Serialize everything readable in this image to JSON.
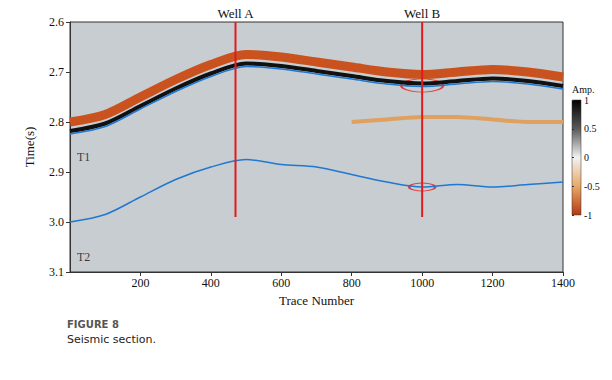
{
  "chart_data": {
    "type": "line",
    "caption": [
      "FIGURE 8",
      "Seismic section."
    ],
    "x_label": "Trace Number",
    "y_label": "Time(s)",
    "xlim": [
      0,
      1400
    ],
    "xticks": [
      200,
      400,
      600,
      800,
      1000,
      1200,
      1400
    ],
    "ylim": [
      2.6,
      3.1
    ],
    "yticks": [
      2.6,
      2.7,
      2.8,
      2.9,
      {
        "value": 3,
        "label": "3.0"
      },
      3.1
    ],
    "grid": false,
    "x": [
      0,
      100,
      200,
      300,
      400,
      500,
      600,
      700,
      800,
      900,
      1000,
      1100,
      1200,
      1300,
      1400
    ],
    "series": [
      {
        "color": "#c9521f",
        "line_style": "thick",
        "values": [
          2.8,
          2.785,
          2.75,
          2.715,
          2.685,
          2.665,
          2.67,
          2.68,
          2.69,
          2.7,
          2.705,
          2.7,
          2.695,
          2.7,
          2.71
        ]
      },
      {
        "color": "#111111",
        "line_style": "medium",
        "values": [
          2.818,
          2.803,
          2.768,
          2.733,
          2.703,
          2.683,
          2.688,
          2.698,
          2.708,
          2.718,
          2.723,
          2.718,
          2.713,
          2.718,
          2.728
        ]
      },
      {
        "color": "#1f78d1",
        "line_style": "thin",
        "values": [
          2.824,
          2.809,
          2.774,
          2.739,
          2.709,
          2.689,
          2.694,
          2.704,
          2.714,
          2.724,
          2.729,
          2.724,
          2.719,
          2.724,
          2.734
        ]
      },
      {
        "color": "#e0a060",
        "line_style": "medium",
        "values": [
          null,
          null,
          null,
          null,
          null,
          null,
          null,
          null,
          2.8,
          2.795,
          2.79,
          2.79,
          2.795,
          2.8,
          2.8
        ]
      },
      {
        "color": "#1f78d1",
        "line_style": "thin",
        "values": [
          3.0,
          2.985,
          2.95,
          2.915,
          2.89,
          2.875,
          2.885,
          2.89,
          2.905,
          2.92,
          2.93,
          2.925,
          2.93,
          2.925,
          2.92
        ]
      }
    ],
    "wells": [
      {
        "label": "Well A",
        "x": 470,
        "top": 2.6,
        "bottom": 2.99,
        "color": "#e31a1c"
      },
      {
        "label": "Well B",
        "x": 1000,
        "top": 2.6,
        "bottom": 2.99,
        "color": "#e31a1c"
      }
    ],
    "highlights": [
      {
        "x": 1000,
        "y": 2.727,
        "color": "#e31a1c"
      },
      {
        "x": 1000,
        "y": 2.93,
        "color": "#e31a1c"
      }
    ],
    "annotations": [
      {
        "text": "T1",
        "x": 20,
        "y": 2.87
      },
      {
        "text": "T2",
        "x": 20,
        "y": 3.07
      }
    ],
    "colorbar": {
      "title": "Amp.",
      "range": [
        -1,
        1
      ],
      "ticks": [
        1,
        0.5,
        0,
        -0.5,
        -1
      ],
      "colors": [
        "#000000",
        "#5a5a5a",
        "#f2f2f2",
        "#e8a868",
        "#b23a12"
      ]
    }
  }
}
